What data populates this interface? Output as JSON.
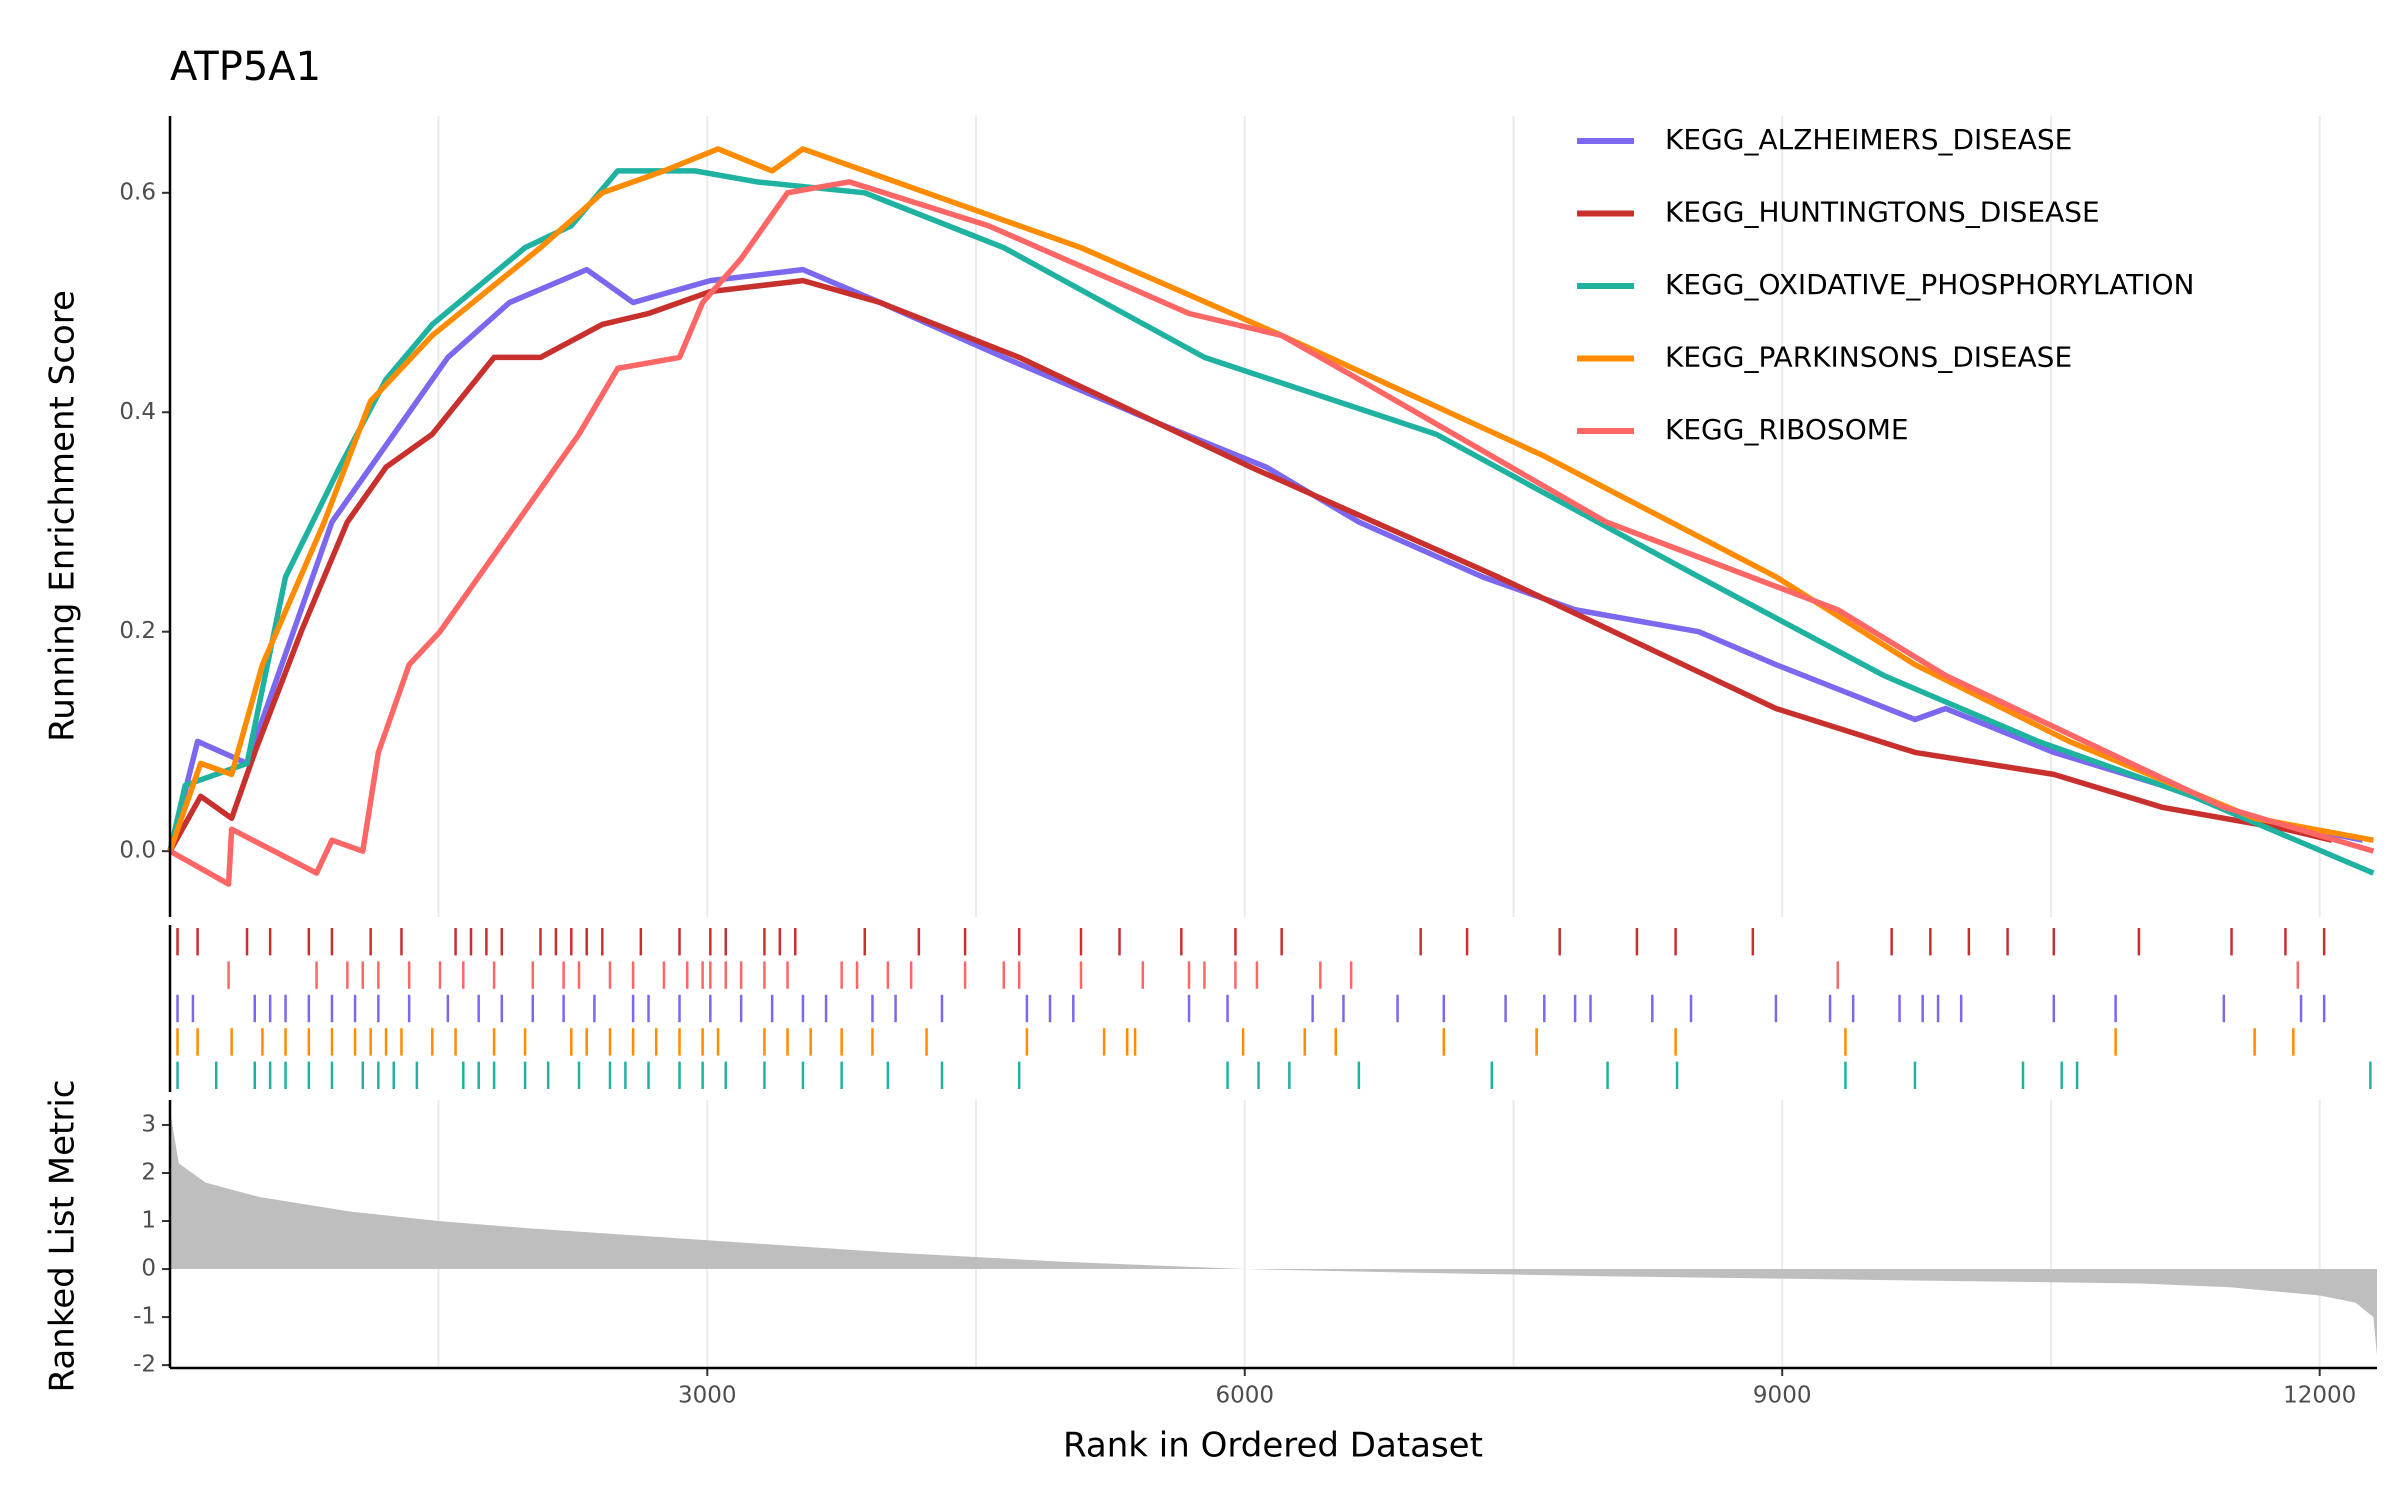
{
  "chart_data": {
    "type": "gsea",
    "title": "ATP5A1",
    "ylabel": "Running Enrichment Score",
    "xlabel": "Rank in Ordered Dataset",
    "xlim": [
      1,
      12320
    ],
    "xticks": [
      3000,
      6000,
      9000,
      12000
    ],
    "xminorticks": [
      1500,
      4500,
      7500,
      10500
    ],
    "ylim": [
      -0.06,
      0.67
    ],
    "yticks": [
      {
        "value": 0,
        "label": "0.0"
      },
      {
        "value": 0.2,
        "label": "0.2"
      },
      {
        "value": 0.4,
        "label": "0.4"
      },
      {
        "value": 0.6,
        "label": "0.6"
      }
    ],
    "series": [
      {
        "name": "KEGG_ALZHEIMERS_DISEASE",
        "color": "#7b68ee",
        "x": [
          1,
          155,
          431,
          905,
          1552,
          1896,
          2327,
          2586,
          3017,
          3534,
          3965,
          4655,
          5517,
          6120,
          6637,
          7327,
          7844,
          8534,
          8965,
          9741,
          9913,
          10516,
          11120,
          11637,
          12240
        ],
        "values": [
          0,
          0.1,
          0.08,
          0.3,
          0.45,
          0.5,
          0.53,
          0.5,
          0.52,
          0.53,
          0.5,
          0.45,
          0.39,
          0.35,
          0.3,
          0.25,
          0.22,
          0.2,
          0.17,
          0.12,
          0.13,
          0.09,
          0.06,
          0.03,
          0.01
        ],
        "hits": [
          43,
          129,
          474,
          560,
          646,
          776,
          905,
          1034,
          1164,
          1336,
          1552,
          1724,
          1853,
          2026,
          2198,
          2370,
          2586,
          2672,
          2845,
          3017,
          3189,
          3362,
          3534,
          3663,
          3922,
          4051,
          4310,
          4784,
          4913,
          5043,
          5689,
          5904,
          6379,
          6551,
          6853,
          7111,
          7456,
          7672,
          7844,
          7930,
          8275,
          8491,
          8965,
          9267,
          9396,
          9655,
          9784,
          9870,
          9999,
          10516,
          10861,
          11465,
          11896,
          12025
        ]
      },
      {
        "name": "KEGG_HUNTINGTONS_DISEASE",
        "color": "#c8302e",
        "x": [
          1,
          172,
          345,
          474,
          733,
          991,
          1207,
          1465,
          1810,
          2069,
          2414,
          2672,
          3017,
          3534,
          3965,
          4741,
          6034,
          7413,
          8189,
          8965,
          9741,
          10516,
          11120,
          11809,
          12068
        ],
        "values": [
          0,
          0.05,
          0.03,
          0.09,
          0.2,
          0.3,
          0.35,
          0.38,
          0.45,
          0.45,
          0.48,
          0.49,
          0.51,
          0.52,
          0.5,
          0.45,
          0.35,
          0.25,
          0.19,
          0.13,
          0.09,
          0.07,
          0.04,
          0.02,
          0.01
        ],
        "hits": [
          43,
          155,
          431,
          560,
          776,
          905,
          1121,
          1293,
          1595,
          1681,
          1767,
          1853,
          2069,
          2155,
          2241,
          2327,
          2414,
          2629,
          2845,
          3017,
          3103,
          3319,
          3405,
          3491,
          3879,
          4181,
          4439,
          4741,
          5086,
          5301,
          5646,
          5948,
          6206,
          6982,
          7241,
          7758,
          8189,
          8405,
          8836,
          9611,
          9827,
          10042,
          10258,
          10516,
          10991,
          11508,
          11809,
          12025
        ]
      },
      {
        "name": "KEGG_OXIDATIVE_PHOSPHORYLATION",
        "color": "#20b2a0",
        "x": [
          1,
          86,
          431,
          646,
          948,
          1207,
          1465,
          1983,
          2241,
          2500,
          2931,
          3276,
          3879,
          4655,
          5775,
          7068,
          8534,
          9568,
          10430,
          11292,
          12300
        ],
        "values": [
          0,
          0.06,
          0.08,
          0.25,
          0.35,
          0.43,
          0.48,
          0.55,
          0.57,
          0.62,
          0.62,
          0.61,
          0.6,
          0.55,
          0.45,
          0.38,
          0.25,
          0.16,
          0.1,
          0.05,
          -0.02
        ],
        "hits": [
          43,
          259,
          474,
          560,
          646,
          776,
          905,
          1077,
          1164,
          1250,
          1379,
          1638,
          1724,
          1810,
          1983,
          2112,
          2284,
          2457,
          2543,
          2672,
          2845,
          2974,
          3103,
          3319,
          3534,
          3750,
          4008,
          4310,
          4741,
          5904,
          6077,
          6249,
          6637,
          7379,
          8025,
          8413,
          9353,
          9741,
          10344,
          10560,
          10646,
          12283
        ]
      },
      {
        "name": "KEGG_PARKINSONS_DISEASE",
        "color": "#ff8c00",
        "x": [
          1,
          172,
          345,
          517,
          862,
          1120,
          1465,
          2069,
          2414,
          2758,
          3060,
          3362,
          3534,
          4224,
          5086,
          6206,
          7672,
          8965,
          9741,
          10603,
          11637,
          12300
        ],
        "values": [
          0,
          0.08,
          0.07,
          0.17,
          0.3,
          0.41,
          0.47,
          0.55,
          0.6,
          0.62,
          0.64,
          0.62,
          0.64,
          0.6,
          0.55,
          0.47,
          0.36,
          0.25,
          0.17,
          0.1,
          0.03,
          0.01
        ],
        "hits": [
          43,
          155,
          345,
          517,
          646,
          776,
          905,
          1034,
          1121,
          1207,
          1293,
          1465,
          1595,
          1810,
          1983,
          2241,
          2327,
          2457,
          2586,
          2715,
          2845,
          2974,
          3060,
          3319,
          3448,
          3577,
          3750,
          3922,
          4224,
          4784,
          5215,
          5344,
          5388,
          5991,
          6335,
          6508,
          7111,
          7629,
          8405,
          9353,
          10861,
          11637,
          11853
        ]
      },
      {
        "name": "KEGG_RIBOSOME",
        "color": "#ff6666",
        "x": [
          1,
          328,
          345,
          819,
          905,
          1077,
          1164,
          1336,
          1508,
          1810,
          2069,
          2284,
          2500,
          2845,
          2974,
          3189,
          3448,
          3793,
          4569,
          5689,
          6206,
          6637,
          8017,
          9310,
          9913,
          10947,
          11465,
          12300
        ],
        "values": [
          0,
          -0.03,
          0.02,
          -0.02,
          0.01,
          0,
          0.09,
          0.17,
          0.2,
          0.27,
          0.33,
          0.38,
          0.44,
          0.45,
          0.5,
          0.54,
          0.6,
          0.61,
          0.57,
          0.49,
          0.47,
          0.43,
          0.3,
          0.22,
          0.16,
          0.08,
          0.04,
          0
        ],
        "hits": [
          328,
          819,
          991,
          1077,
          1164,
          1336,
          1508,
          1638,
          1810,
          2026,
          2198,
          2284,
          2457,
          2586,
          2758,
          2888,
          2974,
          3017,
          3103,
          3189,
          3319,
          3448,
          3750,
          3836,
          4008,
          4138,
          4439,
          4655,
          4741,
          5086,
          5431,
          5689,
          5775,
          5948,
          6068,
          6422,
          6594,
          9310,
          11878
        ]
      }
    ],
    "metric": {
      "ylabel": "Ranked List Metric",
      "ylim": [
        -2.06,
        3.52
      ],
      "yticks": [
        -2,
        -1,
        0,
        1,
        2,
        3
      ],
      "color": "#bebebe",
      "x": [
        1,
        50,
        200,
        500,
        1000,
        1500,
        2000,
        3000,
        4000,
        5000,
        6000,
        7000,
        8000,
        9000,
        10000,
        11000,
        11500,
        12000,
        12200,
        12300,
        12320
      ],
      "values": [
        3.3,
        2.2,
        1.8,
        1.5,
        1.2,
        1.0,
        0.85,
        0.6,
        0.35,
        0.15,
        0,
        -0.08,
        -0.15,
        -0.2,
        -0.25,
        -0.3,
        -0.38,
        -0.55,
        -0.7,
        -1.0,
        -1.8
      ]
    }
  }
}
